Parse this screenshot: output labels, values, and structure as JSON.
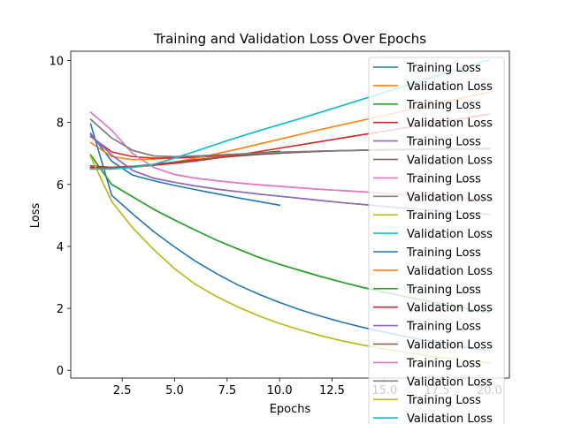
{
  "chart_data": {
    "type": "line",
    "title": "Training and Validation Loss Over Epochs",
    "xlabel": "Epochs",
    "ylabel": "Loss",
    "xlim": [
      0.05,
      20.95
    ],
    "ylim": [
      -0.25,
      10.3
    ],
    "xticks": [
      2.5,
      5.0,
      7.5,
      10.0,
      12.5,
      15.0,
      17.5,
      20.0
    ],
    "yticks": [
      0,
      2,
      4,
      6,
      8,
      10
    ],
    "grid": false,
    "legend_position": "top-right",
    "series": [
      {
        "name": "Training Loss",
        "color": "#1f77b4",
        "x": [
          1,
          2,
          3,
          4,
          5,
          6,
          7,
          8,
          9,
          10
        ],
        "y": [
          7.65,
          6.75,
          6.3,
          6.12,
          5.97,
          5.83,
          5.7,
          5.57,
          5.45,
          5.33
        ]
      },
      {
        "name": "Validation Loss",
        "color": "#ff7f0e",
        "x": [
          1,
          2,
          3,
          4,
          5,
          6,
          7,
          8,
          9,
          10
        ],
        "y": [
          7.35,
          6.9,
          6.8,
          6.82,
          6.85,
          6.88,
          6.91,
          6.95,
          6.98,
          7.0
        ]
      },
      {
        "name": "Training Loss",
        "color": "#2ca02c",
        "x": [
          1,
          2,
          3,
          4,
          5,
          6,
          7,
          8,
          9,
          10,
          11,
          12,
          13,
          14,
          15,
          16,
          17,
          18,
          19,
          20
        ],
        "y": [
          6.95,
          6.0,
          5.6,
          5.2,
          4.85,
          4.52,
          4.2,
          3.92,
          3.65,
          3.42,
          3.22,
          3.02,
          2.84,
          2.67,
          2.52,
          2.38,
          2.24,
          2.11,
          1.98,
          1.86
        ]
      },
      {
        "name": "Validation Loss",
        "color": "#d62728",
        "x": [
          1,
          2,
          3,
          4,
          5,
          6,
          7,
          8,
          9,
          10
        ],
        "y": [
          7.55,
          7.05,
          6.9,
          6.85,
          6.86,
          6.88,
          6.92,
          6.97,
          7.02,
          7.07
        ]
      },
      {
        "name": "Training Loss",
        "color": "#9467bd",
        "x": [
          1,
          2,
          3,
          4,
          5,
          6,
          7,
          8,
          9,
          10,
          11,
          12,
          13,
          14,
          15,
          16,
          17,
          18,
          19,
          20
        ],
        "y": [
          7.6,
          6.95,
          6.45,
          6.2,
          6.07,
          5.95,
          5.85,
          5.77,
          5.69,
          5.62,
          5.55,
          5.48,
          5.41,
          5.35,
          5.29,
          5.23,
          5.18,
          5.13,
          5.08,
          5.03
        ]
      },
      {
        "name": "Validation Loss",
        "color": "#8c564b",
        "x": [
          1,
          2,
          3,
          4,
          5,
          6,
          7,
          8,
          9,
          10,
          11,
          12,
          13,
          14,
          15,
          16,
          17,
          18,
          19,
          20
        ],
        "y": [
          6.6,
          6.55,
          6.58,
          6.65,
          6.72,
          6.8,
          6.86,
          6.92,
          6.97,
          7.01,
          7.04,
          7.07,
          7.09,
          7.11,
          7.12,
          7.13,
          7.14,
          7.15,
          7.15,
          7.16
        ]
      },
      {
        "name": "Training Loss",
        "color": "#e377c2",
        "x": [
          1,
          2,
          3,
          4,
          5,
          6,
          7,
          8,
          9,
          10,
          11,
          12,
          13,
          14,
          15,
          16,
          17,
          18,
          19,
          20
        ],
        "y": [
          8.33,
          7.75,
          7.0,
          6.55,
          6.32,
          6.2,
          6.12,
          6.05,
          5.99,
          5.94,
          5.89,
          5.84,
          5.8,
          5.76,
          5.71,
          5.67,
          5.63,
          5.59,
          5.55,
          5.51
        ]
      },
      {
        "name": "Validation Loss",
        "color": "#7f7f7f",
        "x": [
          1,
          2,
          3,
          4,
          5,
          6,
          7,
          8,
          9,
          10,
          11,
          12,
          13,
          14,
          15,
          16,
          17,
          18,
          19,
          20
        ],
        "y": [
          8.1,
          7.5,
          7.1,
          6.92,
          6.9,
          6.92,
          6.95,
          6.98,
          7.01,
          7.04,
          7.06,
          7.08,
          7.09,
          7.1,
          7.11,
          7.12,
          7.13,
          7.13,
          7.14,
          7.14
        ]
      },
      {
        "name": "Training Loss",
        "color": "#bcbd22",
        "x": [
          1,
          2,
          3,
          4,
          5,
          6,
          7,
          8,
          9,
          10,
          11,
          12,
          13,
          14,
          15,
          16,
          17,
          18,
          19,
          20
        ],
        "y": [
          6.9,
          5.45,
          4.6,
          3.9,
          3.28,
          2.77,
          2.38,
          2.05,
          1.76,
          1.51,
          1.3,
          1.11,
          0.95,
          0.81,
          0.69,
          0.58,
          0.48,
          0.39,
          0.31,
          0.24
        ]
      },
      {
        "name": "Validation Loss",
        "color": "#17becf",
        "x": [
          1,
          2,
          3,
          4,
          5,
          6,
          7,
          8,
          9,
          10,
          11,
          12,
          13,
          14,
          15,
          16,
          17,
          18,
          19,
          20
        ],
        "y": [
          6.5,
          6.5,
          6.55,
          6.65,
          6.85,
          7.07,
          7.3,
          7.52,
          7.73,
          7.93,
          8.13,
          8.34,
          8.55,
          8.76,
          8.97,
          9.18,
          9.4,
          9.61,
          9.82,
          10.03
        ]
      },
      {
        "name": "Training Loss",
        "color": "#1f77b4",
        "x": [
          1,
          2,
          3,
          4,
          5,
          6,
          7,
          8,
          9,
          10,
          11,
          12,
          13,
          14,
          15,
          16,
          17,
          18,
          19,
          20
        ],
        "y": [
          7.95,
          5.65,
          5.05,
          4.48,
          3.98,
          3.52,
          3.12,
          2.76,
          2.46,
          2.19,
          1.95,
          1.74,
          1.55,
          1.38,
          1.23,
          1.09,
          0.96,
          0.84,
          0.73,
          0.63
        ]
      },
      {
        "name": "Validation Loss",
        "color": "#ff7f0e",
        "x": [
          1,
          2,
          3,
          4,
          5,
          6,
          7,
          8,
          9,
          10,
          11,
          12,
          13,
          14,
          15,
          16,
          17,
          18,
          19,
          20
        ],
        "y": [
          6.55,
          6.52,
          6.55,
          6.62,
          6.72,
          6.85,
          6.99,
          7.14,
          7.3,
          7.46,
          7.62,
          7.78,
          7.93,
          8.08,
          8.23,
          8.38,
          8.53,
          8.68,
          8.83,
          8.98
        ]
      },
      {
        "name": "Training Loss",
        "color": "#2ca02c",
        "x": [
          1,
          2,
          3,
          4,
          5,
          6,
          7,
          8,
          9,
          10,
          11,
          12,
          13,
          14,
          15,
          16,
          17,
          18,
          19,
          20
        ],
        "y": [
          6.95,
          6.0,
          5.6,
          5.2,
          4.85,
          4.52,
          4.2,
          3.92,
          3.65,
          3.42,
          3.22,
          3.02,
          2.84,
          2.67,
          2.52,
          2.38,
          2.24,
          2.11,
          1.98,
          1.86
        ]
      },
      {
        "name": "Validation Loss",
        "color": "#d62728",
        "x": [
          1,
          2,
          3,
          4,
          5,
          6,
          7,
          8,
          9,
          10,
          11,
          12,
          13,
          14,
          15,
          16,
          17,
          18,
          19,
          20
        ],
        "y": [
          6.55,
          6.55,
          6.58,
          6.62,
          6.68,
          6.76,
          6.85,
          6.95,
          7.06,
          7.17,
          7.28,
          7.39,
          7.5,
          7.61,
          7.72,
          7.83,
          7.94,
          8.05,
          8.16,
          8.27
        ]
      },
      {
        "name": "Training Loss",
        "color": "#9467bd",
        "x": [
          1,
          2,
          3,
          4,
          5,
          6,
          7,
          8,
          9,
          10,
          11,
          12,
          13,
          14,
          15,
          16,
          17,
          18,
          19,
          20
        ],
        "y": [
          7.6,
          6.95,
          6.45,
          6.2,
          6.07,
          5.95,
          5.85,
          5.77,
          5.69,
          5.62,
          5.55,
          5.48,
          5.41,
          5.35,
          5.29,
          5.23,
          5.18,
          5.13,
          5.08,
          5.03
        ]
      },
      {
        "name": "Validation Loss",
        "color": "#8c564b",
        "x": [
          1,
          2,
          3,
          4,
          5,
          6,
          7,
          8,
          9,
          10,
          11,
          12,
          13,
          14,
          15,
          16,
          17,
          18,
          19,
          20
        ],
        "y": [
          6.6,
          6.55,
          6.58,
          6.65,
          6.72,
          6.8,
          6.86,
          6.92,
          6.97,
          7.01,
          7.04,
          7.07,
          7.09,
          7.11,
          7.12,
          7.13,
          7.14,
          7.15,
          7.15,
          7.16
        ]
      },
      {
        "name": "Training Loss",
        "color": "#e377c2",
        "x": [
          1,
          2,
          3,
          4,
          5,
          6,
          7,
          8,
          9,
          10,
          11,
          12,
          13,
          14,
          15,
          16,
          17,
          18,
          19,
          20
        ],
        "y": [
          8.33,
          7.75,
          7.0,
          6.55,
          6.32,
          6.2,
          6.12,
          6.05,
          5.99,
          5.94,
          5.89,
          5.84,
          5.8,
          5.76,
          5.71,
          5.67,
          5.63,
          5.59,
          5.55,
          5.51
        ]
      },
      {
        "name": "Validation Loss",
        "color": "#7f7f7f",
        "x": [
          1,
          2,
          3,
          4,
          5,
          6,
          7,
          8,
          9,
          10,
          11,
          12,
          13,
          14,
          15,
          16,
          17,
          18,
          19,
          20
        ],
        "y": [
          8.1,
          7.5,
          7.1,
          6.92,
          6.9,
          6.92,
          6.95,
          6.98,
          7.01,
          7.04,
          7.06,
          7.08,
          7.09,
          7.1,
          7.11,
          7.12,
          7.13,
          7.13,
          7.14,
          7.14
        ]
      },
      {
        "name": "Training Loss",
        "color": "#bcbd22",
        "x": [
          1,
          2,
          3,
          4,
          5,
          6,
          7,
          8,
          9,
          10,
          11,
          12,
          13,
          14,
          15,
          16,
          17,
          18,
          19,
          20
        ],
        "y": [
          6.9,
          5.45,
          4.6,
          3.9,
          3.28,
          2.77,
          2.38,
          2.05,
          1.76,
          1.51,
          1.3,
          1.11,
          0.95,
          0.81,
          0.69,
          0.58,
          0.48,
          0.39,
          0.31,
          0.24
        ]
      },
      {
        "name": "Validation Loss",
        "color": "#17becf",
        "x": [
          1,
          2,
          3,
          4,
          5,
          6,
          7,
          8,
          9,
          10,
          11,
          12,
          13,
          14,
          15,
          16,
          17,
          18,
          19,
          20
        ],
        "y": [
          6.5,
          6.5,
          6.55,
          6.65,
          6.85,
          7.07,
          7.3,
          7.52,
          7.73,
          7.93,
          8.13,
          8.34,
          8.55,
          8.76,
          8.97,
          9.18,
          9.4,
          9.61,
          9.82,
          10.03
        ]
      }
    ]
  }
}
